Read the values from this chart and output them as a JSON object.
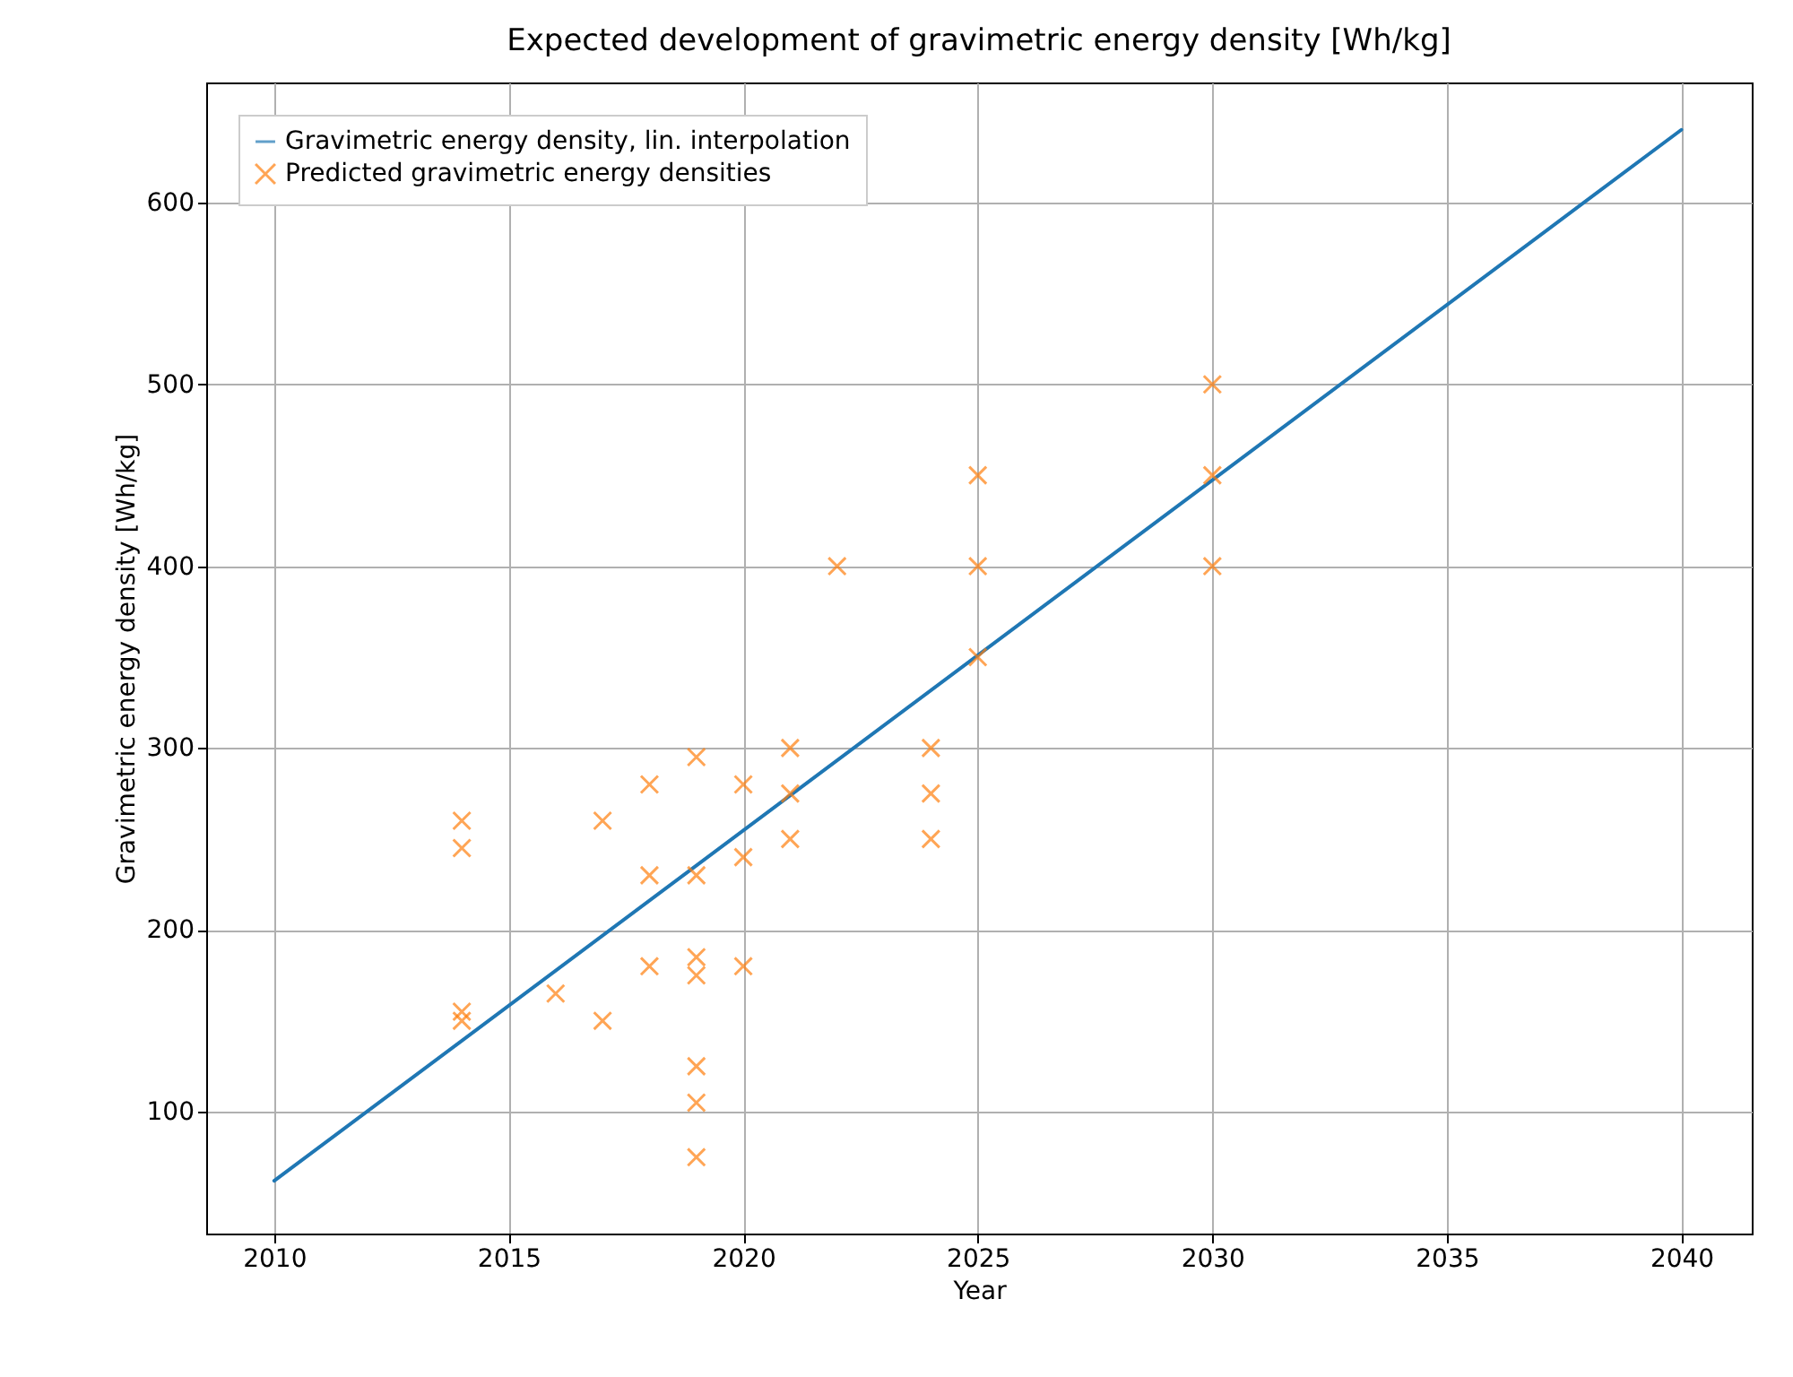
{
  "chart_data": {
    "type": "scatter",
    "title": "Expected development of gravimetric energy density [Wh/kg]",
    "xlabel": "Year",
    "ylabel": "Gravimetric energy density [Wh/kg]",
    "xlim": [
      2008.55,
      2041.5
    ],
    "xticks": [
      2010,
      2015,
      2020,
      2025,
      2030,
      2035,
      2040
    ],
    "ylim": [
      33,
      666
    ],
    "yticks": [
      100,
      200,
      300,
      400,
      500,
      600
    ],
    "grid": true,
    "legend": "top left",
    "series": [
      {
        "name": "Gravimetric energy density, lin. interpolation",
        "type": "line",
        "color": "#1f77b4",
        "line_style": "solid",
        "marker": "none",
        "x": [
          2010,
          2040
        ],
        "values": [
          62,
          640
        ]
      },
      {
        "name": "Predicted gravimetric energy densities",
        "color": "#ff7f0e",
        "marker": "cross",
        "x": [
          2014,
          2014,
          2014,
          2014,
          2016,
          2017,
          2017,
          2018,
          2018,
          2018,
          2019,
          2019,
          2019,
          2019,
          2019,
          2019,
          2019,
          2020,
          2020,
          2020,
          2021,
          2021,
          2021,
          2022,
          2024,
          2024,
          2024,
          2025,
          2025,
          2025,
          2030,
          2030,
          2030
        ],
        "values": [
          260,
          245,
          155,
          150,
          165,
          260,
          150,
          280,
          230,
          180,
          295,
          230,
          185,
          175,
          125,
          105,
          75,
          280,
          240,
          180,
          300,
          275,
          250,
          400,
          300,
          275,
          250,
          450,
          400,
          350,
          500,
          450,
          400
        ]
      }
    ]
  }
}
